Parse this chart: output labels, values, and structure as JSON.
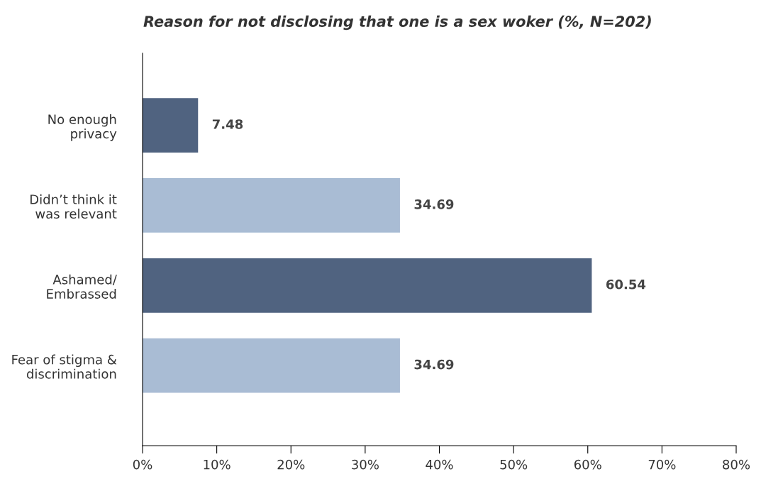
{
  "chart_data": {
    "type": "bar",
    "orientation": "horizontal",
    "title": "Reason for not disclosing that one is a sex woker (%, N=202)",
    "categories": [
      "No enough\nprivacy",
      "Didn’t think it\nwas relevant",
      "Ashamed/\nEmbrassed",
      "Fear of stigma &\ndiscrimination"
    ],
    "values": [
      7.48,
      34.69,
      60.54,
      34.69
    ],
    "colors": [
      "#506380",
      "#a9bcd4",
      "#506380",
      "#a9bcd4"
    ],
    "xlim": [
      0,
      80
    ],
    "xticks": [
      {
        "value": 0,
        "label": "0%"
      },
      {
        "value": 10,
        "label": "10%"
      },
      {
        "value": 20,
        "label": "20%"
      },
      {
        "value": 30,
        "label": "30%"
      },
      {
        "value": 40,
        "label": "40%"
      },
      {
        "value": 50,
        "label": "50%"
      },
      {
        "value": 60,
        "label": "60%"
      },
      {
        "value": 70,
        "label": "70%"
      },
      {
        "value": 80,
        "label": "80%"
      }
    ],
    "data_labels": true,
    "grid": false,
    "legend": false
  }
}
